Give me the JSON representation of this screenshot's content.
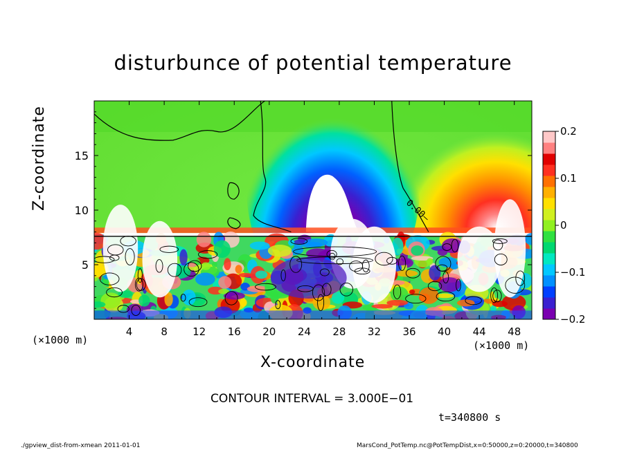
{
  "chart_data": {
    "type": "heatmap",
    "title": "disturbunce of potential temperature",
    "xlabel": "X-coordinate",
    "ylabel": "Z-coordinate",
    "x_unit_left": "(×1000 m)",
    "x_unit_right": "(×1000 m)",
    "xlim": [
      0,
      50
    ],
    "ylim": [
      0,
      20
    ],
    "xticks": [
      "4",
      "8",
      "12",
      "16",
      "20",
      "24",
      "28",
      "32",
      "36",
      "40",
      "44",
      "48"
    ],
    "xtick_values": [
      4,
      8,
      12,
      16,
      20,
      24,
      28,
      32,
      36,
      40,
      44,
      48
    ],
    "yticks": [
      "5",
      "10",
      "15"
    ],
    "ytick_values": [
      5,
      10,
      15
    ],
    "colorbar": {
      "ticks": [
        "0.2",
        "0.1",
        "0",
        "−0.1",
        "−0.2"
      ],
      "tick_values": [
        0.2,
        0.1,
        0,
        -0.1,
        -0.2
      ],
      "range": [
        -0.2,
        0.2
      ],
      "colors": [
        "#7a00b0",
        "#3a20d0",
        "#0040ff",
        "#0090ff",
        "#00c8ff",
        "#00e8c0",
        "#00d870",
        "#30e040",
        "#90f020",
        "#d0f020",
        "#ffe000",
        "#ffb000",
        "#ff7000",
        "#ff3020",
        "#e00000",
        "#ff8080",
        "#ffc8c8"
      ]
    },
    "contour_labels": [
      "0.00"
    ],
    "contour_interval": 0.3
  },
  "annotations": {
    "contour_interval": "CONTOUR INTERVAL = 3.000E−01",
    "time": "t=340800 s"
  },
  "footer": {
    "left": "./gpview_dist-from-xmean  2011-01-01",
    "right": "MarsCond_PotTemp.nc@PotTempDist,x=0:50000,z=0:20000,t=340800"
  }
}
